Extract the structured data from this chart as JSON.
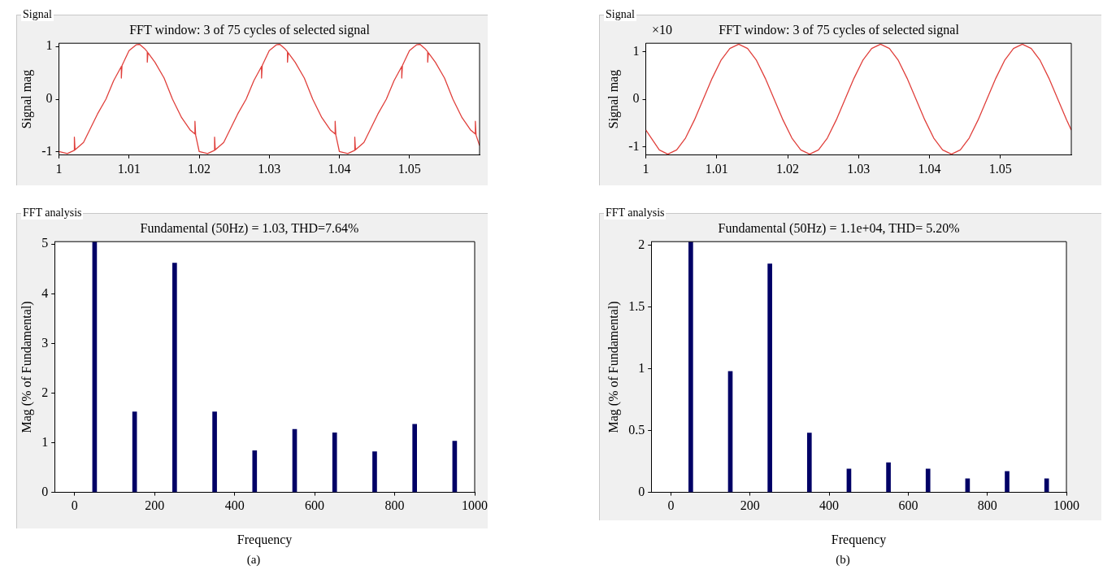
{
  "chart_data": [
    {
      "type": "line",
      "title": "FFT window: 3 of 75 cycles of selected signal",
      "ylabel": "Signal mag",
      "annotations": [
        "Signal"
      ],
      "color": "#e0403c",
      "xlim": [
        1,
        1.06
      ],
      "xticks": [
        1,
        1.01,
        1.02,
        1.03,
        1.04,
        1.05
      ],
      "ylim": [
        -1.06,
        1.06
      ],
      "yticks": [
        -1,
        0,
        1
      ],
      "x": [
        1.0,
        1.0012,
        1.0022,
        1.0022,
        1.0023,
        1.0035,
        1.0045,
        1.0055,
        1.0067,
        1.0078,
        1.0089,
        1.0089,
        1.009,
        1.01,
        1.011,
        1.0115,
        1.0122,
        1.0126,
        1.0126,
        1.0127,
        1.0137,
        1.015,
        1.0162,
        1.0175,
        1.0187,
        1.0194,
        1.0194,
        1.0195,
        1.02,
        1.0212,
        1.0222,
        1.0222,
        1.0223,
        1.0235,
        1.0245,
        1.0255,
        1.0267,
        1.0278,
        1.0289,
        1.0289,
        1.029,
        1.03,
        1.031,
        1.0315,
        1.0322,
        1.0326,
        1.0326,
        1.0327,
        1.0337,
        1.035,
        1.0362,
        1.0375,
        1.0387,
        1.0394,
        1.0394,
        1.0395,
        1.04,
        1.0412,
        1.0422,
        1.0422,
        1.0423,
        1.0435,
        1.0445,
        1.0455,
        1.0467,
        1.0478,
        1.0489,
        1.0489,
        1.049,
        1.05,
        1.051,
        1.0515,
        1.0522,
        1.0526,
        1.0526,
        1.0527,
        1.0537,
        1.055,
        1.0562,
        1.0575,
        1.0587,
        1.0594,
        1.0594,
        1.0595,
        1.06
      ],
      "values": [
        -0.99,
        -1.03,
        -0.97,
        -0.72,
        -0.96,
        -0.82,
        -0.55,
        -0.28,
        0,
        0.35,
        0.62,
        0.4,
        0.64,
        0.92,
        1.03,
        1.04,
        0.96,
        0.9,
        0.7,
        0.88,
        0.7,
        0.4,
        0,
        -0.35,
        -0.58,
        -0.66,
        -0.42,
        -0.68,
        -0.99,
        -1.03,
        -0.97,
        -0.72,
        -0.96,
        -0.82,
        -0.55,
        -0.28,
        0,
        0.35,
        0.62,
        0.4,
        0.64,
        0.92,
        1.03,
        1.04,
        0.96,
        0.9,
        0.7,
        0.88,
        0.7,
        0.4,
        0,
        -0.35,
        -0.58,
        -0.66,
        -0.42,
        -0.68,
        -0.99,
        -1.03,
        -0.97,
        -0.72,
        -0.96,
        -0.82,
        -0.55,
        -0.28,
        0,
        0.35,
        0.62,
        0.4,
        0.64,
        0.92,
        1.03,
        1.04,
        0.96,
        0.9,
        0.7,
        0.88,
        0.7,
        0.4,
        0,
        -0.35,
        -0.58,
        -0.66,
        -0.42,
        -0.68,
        -0.88
      ]
    },
    {
      "type": "line",
      "title": "FFT window: 3 of 75 cycles of selected signal",
      "ylabel": "Signal mag",
      "annotations": [
        "Signal",
        "×10"
      ],
      "color": "#e0403c",
      "xlim": [
        1,
        1.06
      ],
      "xticks": [
        1,
        1.01,
        1.02,
        1.03,
        1.04,
        1.05
      ],
      "ylim": [
        -1.18,
        1.18
      ],
      "yticks": [
        -1,
        0,
        1
      ],
      "x": [
        1.0,
        1.0019,
        1.0031,
        1.00435,
        1.0056,
        1.00685,
        1.0081,
        1.00935,
        1.0106,
        1.01185,
        1.0131,
        1.01435,
        1.0156,
        1.01685,
        1.0181,
        1.01935,
        1.0206,
        1.02185,
        1.0231,
        1.02435,
        1.0256,
        1.02685,
        1.0281,
        1.02935,
        1.0306,
        1.03185,
        1.0331,
        1.03435,
        1.0356,
        1.03685,
        1.0381,
        1.03935,
        1.0406,
        1.04185,
        1.0431,
        1.04435,
        1.0456,
        1.04685,
        1.0481,
        1.04935,
        1.0506,
        1.05185,
        1.0531,
        1.05435,
        1.0556,
        1.05685,
        1.0581,
        1.05935,
        1.06
      ],
      "values": [
        -0.65,
        -1.07,
        -1.16,
        -1.07,
        -0.82,
        -0.44,
        0,
        0.44,
        0.82,
        1.07,
        1.16,
        1.07,
        0.82,
        0.44,
        0,
        -0.44,
        -0.82,
        -1.07,
        -1.16,
        -1.07,
        -0.82,
        -0.44,
        0,
        0.44,
        0.82,
        1.07,
        1.16,
        1.07,
        0.82,
        0.44,
        0,
        -0.44,
        -0.82,
        -1.07,
        -1.16,
        -1.07,
        -0.82,
        -0.44,
        0,
        0.44,
        0.82,
        1.07,
        1.16,
        1.07,
        0.82,
        0.44,
        0,
        -0.44,
        -0.65
      ]
    },
    {
      "type": "bar",
      "title": "Fundamental (50Hz) = 1.03, THD=7.64%",
      "xlabel": "Frequency",
      "ylabel": "Mag (% of Fundamental)",
      "annotations": [
        "FFT analysis",
        "(a)"
      ],
      "color": "#000066",
      "xlim": [
        -50,
        1000
      ],
      "xticks": [
        0,
        200,
        400,
        600,
        800,
        1000
      ],
      "ylim": [
        0,
        5.05
      ],
      "yticks": [
        0,
        1,
        2,
        3,
        4,
        5
      ],
      "x": [
        50,
        150,
        250,
        350,
        450,
        550,
        650,
        750,
        850,
        950
      ],
      "values": [
        5.05,
        1.62,
        4.62,
        1.62,
        0.84,
        1.27,
        1.2,
        0.82,
        1.37,
        1.03
      ]
    },
    {
      "type": "bar",
      "title": "Fundamental (50Hz) = 1.1e+04, THD= 5.20%",
      "xlabel": "Frequency",
      "ylabel": "Mag (% of Fundamental)",
      "annotations": [
        "FFT analysis",
        "(b)"
      ],
      "color": "#000066",
      "xlim": [
        -50,
        1000
      ],
      "xticks": [
        0,
        200,
        400,
        600,
        800,
        1000
      ],
      "ylim": [
        0,
        2.03
      ],
      "yticks": [
        0,
        0.5,
        1,
        1.5,
        2
      ],
      "x": [
        50,
        150,
        250,
        350,
        450,
        550,
        650,
        750,
        850,
        950
      ],
      "values": [
        2.03,
        0.98,
        1.85,
        0.48,
        0.19,
        0.24,
        0.19,
        0.11,
        0.17,
        0.11
      ]
    }
  ]
}
